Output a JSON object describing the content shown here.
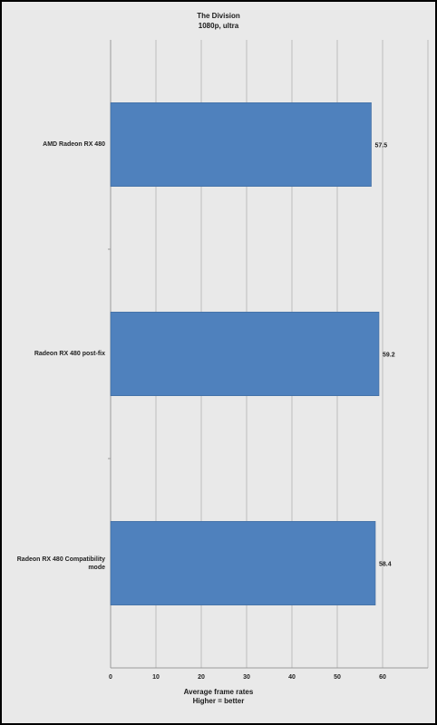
{
  "chart_data": {
    "type": "bar",
    "orientation": "horizontal",
    "title": "The Division",
    "subtitle": "1080p, ultra",
    "categories": [
      "AMD Radeon RX 480",
      "Radeon RX 480 post-fix",
      "Radeon RX 480 Compatibility mode"
    ],
    "values": [
      57.5,
      59.2,
      58.4
    ],
    "data_labels": [
      "57.5",
      "59.2",
      "58.4"
    ],
    "xlabel": "Average frame rates",
    "xlabel_sub": "Higher = better",
    "xlim": [
      0,
      70
    ],
    "xticks": [
      0,
      10,
      20,
      30,
      40,
      50,
      60
    ],
    "grid": true,
    "bar_color": "#4f81bd"
  }
}
